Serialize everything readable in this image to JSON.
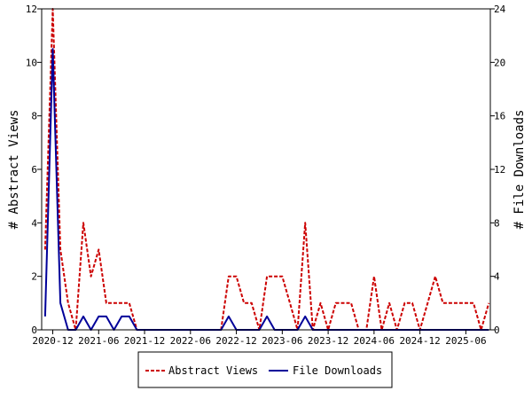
{
  "chart_data": {
    "type": "line",
    "title": "",
    "ylabel_left": "# Abstract Views",
    "ylabel_right": "# File Downloads",
    "ylim_left": [
      0,
      12
    ],
    "ylim_right": [
      0,
      24
    ],
    "yticks_left": [
      "0",
      "2",
      "4",
      "6",
      "8",
      "10",
      "12"
    ],
    "yticks_right": [
      "0",
      "4",
      "8",
      "12",
      "16",
      "20",
      "24"
    ],
    "xticks": [
      "2020-12",
      "2021-06",
      "2021-12",
      "2022-06",
      "2022-12",
      "2023-06",
      "2023-12",
      "2024-06",
      "2024-12",
      "2025-06"
    ],
    "x_range": [
      "2020-11",
      "2025-09"
    ],
    "grid": false,
    "legend_position": "bottom",
    "series": [
      {
        "name": "Abstract Views",
        "axis": "left",
        "color": "#cc0000",
        "style": "dashed",
        "points": [
          [
            "2020-11",
            3
          ],
          [
            "2020-12",
            12
          ],
          [
            "2021-01",
            3
          ],
          [
            "2021-02",
            1
          ],
          [
            "2021-03",
            0
          ],
          [
            "2021-04",
            4
          ],
          [
            "2021-05",
            2
          ],
          [
            "2021-06",
            3
          ],
          [
            "2021-07",
            1
          ],
          [
            "2021-08",
            1
          ],
          [
            "2021-09",
            1
          ],
          [
            "2021-10",
            1
          ],
          [
            "2021-11",
            0
          ],
          [
            "2022-10",
            0
          ],
          [
            "2022-11",
            2
          ],
          [
            "2022-12",
            2
          ],
          [
            "2023-01",
            1
          ],
          [
            "2023-02",
            1
          ],
          [
            "2023-03",
            0
          ],
          [
            "2023-04",
            2
          ],
          [
            "2023-05",
            2
          ],
          [
            "2023-06",
            2
          ],
          [
            "2023-07",
            1
          ],
          [
            "2023-08",
            0
          ],
          [
            "2023-09",
            4
          ],
          [
            "2023-10",
            0
          ],
          [
            "2023-11",
            1
          ],
          [
            "2023-12",
            0
          ],
          [
            "2024-01",
            1
          ],
          [
            "2024-02",
            1
          ],
          [
            "2024-03",
            1
          ],
          [
            "2024-04",
            0
          ],
          [
            "2024-05",
            0
          ],
          [
            "2024-06",
            2
          ],
          [
            "2024-07",
            0
          ],
          [
            "2024-08",
            1
          ],
          [
            "2024-09",
            0
          ],
          [
            "2024-10",
            1
          ],
          [
            "2024-11",
            1
          ],
          [
            "2024-12",
            0
          ],
          [
            "2025-01",
            1
          ],
          [
            "2025-02",
            2
          ],
          [
            "2025-03",
            1
          ],
          [
            "2025-04",
            1
          ],
          [
            "2025-05",
            1
          ],
          [
            "2025-06",
            1
          ],
          [
            "2025-07",
            1
          ],
          [
            "2025-08",
            0
          ],
          [
            "2025-09",
            1
          ]
        ]
      },
      {
        "name": "File Downloads",
        "axis": "right",
        "color": "#000099",
        "style": "solid",
        "points": [
          [
            "2020-11",
            1
          ],
          [
            "2020-12",
            21
          ],
          [
            "2021-01",
            2
          ],
          [
            "2021-02",
            0
          ],
          [
            "2021-03",
            0
          ],
          [
            "2021-04",
            1
          ],
          [
            "2021-05",
            0
          ],
          [
            "2021-06",
            1
          ],
          [
            "2021-07",
            1
          ],
          [
            "2021-08",
            0
          ],
          [
            "2021-09",
            1
          ],
          [
            "2021-10",
            1
          ],
          [
            "2021-11",
            0
          ],
          [
            "2022-10",
            0
          ],
          [
            "2022-11",
            1
          ],
          [
            "2022-12",
            0
          ],
          [
            "2023-01",
            0
          ],
          [
            "2023-02",
            0
          ],
          [
            "2023-03",
            0
          ],
          [
            "2023-04",
            1
          ],
          [
            "2023-05",
            0
          ],
          [
            "2023-06",
            0
          ],
          [
            "2023-07",
            0
          ],
          [
            "2023-08",
            0
          ],
          [
            "2023-09",
            1
          ],
          [
            "2023-10",
            0
          ],
          [
            "2023-11",
            0
          ],
          [
            "2023-12",
            0
          ],
          [
            "2024-01",
            0
          ],
          [
            "2024-02",
            0
          ],
          [
            "2024-03",
            0
          ],
          [
            "2024-04",
            0
          ],
          [
            "2024-05",
            0
          ],
          [
            "2024-06",
            0
          ],
          [
            "2024-07",
            0
          ],
          [
            "2024-08",
            0
          ],
          [
            "2024-09",
            0
          ],
          [
            "2024-10",
            0
          ],
          [
            "2024-11",
            0
          ],
          [
            "2024-12",
            0
          ],
          [
            "2025-01",
            0
          ],
          [
            "2025-02",
            0
          ],
          [
            "2025-03",
            0
          ],
          [
            "2025-04",
            0
          ],
          [
            "2025-05",
            0
          ],
          [
            "2025-06",
            0
          ],
          [
            "2025-07",
            0
          ],
          [
            "2025-08",
            0
          ],
          [
            "2025-09",
            0
          ]
        ]
      }
    ]
  }
}
